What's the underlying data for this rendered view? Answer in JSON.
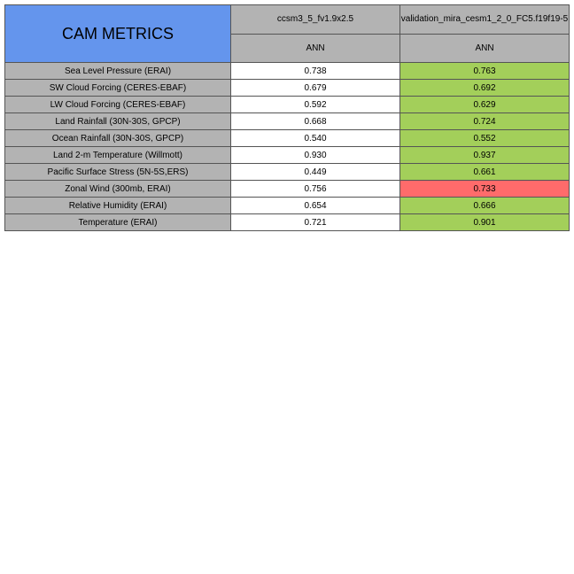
{
  "table": {
    "title": "CAM METRICS",
    "models": [
      "ccsm3_5_fv1.9x2.5",
      "validation_mira_cesm1_2_0_FC5.f19f19-5"
    ],
    "season": "ANN",
    "rows": [
      {
        "label": "Sea Level Pressure (ERAI)",
        "base": "0.738",
        "test": "0.763",
        "status": "better"
      },
      {
        "label": "SW Cloud Forcing (CERES-EBAF)",
        "base": "0.679",
        "test": "0.692",
        "status": "better"
      },
      {
        "label": "LW Cloud Forcing (CERES-EBAF)",
        "base": "0.592",
        "test": "0.629",
        "status": "better"
      },
      {
        "label": "Land Rainfall (30N-30S, GPCP)",
        "base": "0.668",
        "test": "0.724",
        "status": "better"
      },
      {
        "label": "Ocean Rainfall (30N-30S, GPCP)",
        "base": "0.540",
        "test": "0.552",
        "status": "better"
      },
      {
        "label": "Land 2-m Temperature (Willmott)",
        "base": "0.930",
        "test": "0.937",
        "status": "better"
      },
      {
        "label": "Pacific Surface Stress (5N-5S,ERS)",
        "base": "0.449",
        "test": "0.661",
        "status": "better"
      },
      {
        "label": "Zonal Wind (300mb, ERAI)",
        "base": "0.756",
        "test": "0.733",
        "status": "worse"
      },
      {
        "label": "Relative Humidity (ERAI)",
        "base": "0.654",
        "test": "0.666",
        "status": "better"
      },
      {
        "label": "Temperature (ERAI)",
        "base": "0.721",
        "test": "0.901",
        "status": "better"
      }
    ]
  },
  "colors": {
    "title_bg": "#6495ed",
    "header_bg": "#b3b3b3",
    "better": "#a3cf5a",
    "worse": "#ff6b6b"
  }
}
